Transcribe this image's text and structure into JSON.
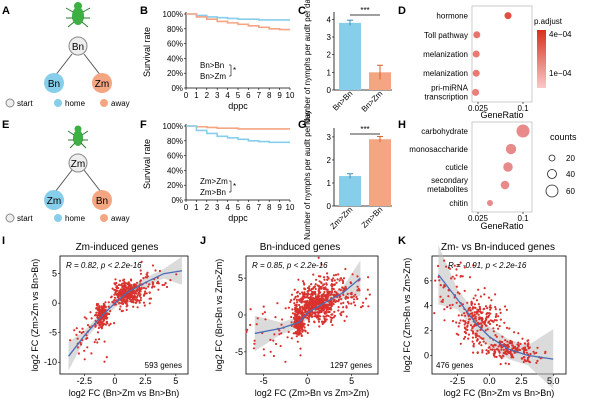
{
  "colors": {
    "bn_blue": "#87CEEB",
    "zm_orange": "#F4A582",
    "start_node": "#EEEEEE",
    "insect_green": "#3CB043",
    "dot_red": "#D9322E",
    "fit_line": "#4A6DB5",
    "ci_band": "#BDBDBD",
    "heat_high": "#D7301F",
    "heat_low": "#F4A6A6"
  },
  "panels": {
    "A": {
      "letter": "A",
      "start": "Bn",
      "left": "Bn",
      "right": "Zm",
      "legend": [
        "start",
        "home",
        "away"
      ]
    },
    "B": {
      "letter": "B",
      "ylabel": "Survival rate",
      "xlabel": "dppc",
      "yticks": [
        "100%",
        "80%",
        "60%",
        "40%",
        "20%",
        "0%"
      ],
      "xticks": [
        "0",
        "1",
        "2",
        "3",
        "4",
        "5",
        "6",
        "7",
        "8",
        "9",
        "10"
      ],
      "legend": [
        "Bn>Bn",
        "Bn>Zm"
      ],
      "sig": "*"
    },
    "C": {
      "letter": "C",
      "ylabel": "Number of nymphs per audlt per day",
      "yticks": [
        "0",
        "1",
        "2",
        "3",
        "4"
      ],
      "sig": "***"
    },
    "D": {
      "letter": "D",
      "xlabel": "GeneRatio",
      "xticks": [
        "0.025",
        "0.1"
      ],
      "legend_title": "p.adjust",
      "legend_ticks": [
        "4e−04",
        "1e−04"
      ]
    },
    "E": {
      "letter": "E",
      "start": "Zm",
      "left": "Zm",
      "right": "Bn",
      "legend": [
        "start",
        "home",
        "away"
      ]
    },
    "F": {
      "letter": "F",
      "ylabel": "Survival rate",
      "xlabel": "dppc",
      "yticks": [
        "100%",
        "80%",
        "60%",
        "40%",
        "20%",
        "0%"
      ],
      "xticks": [
        "0",
        "1",
        "2",
        "3",
        "4",
        "5",
        "6",
        "7",
        "8",
        "9",
        "10"
      ],
      "legend": [
        "Zm>Zm",
        "Zm>Bn"
      ],
      "sig": "*"
    },
    "G": {
      "letter": "G",
      "ylabel": "Number of nymphs per audlt per day",
      "yticks": [
        "0",
        "1",
        "2",
        "3"
      ],
      "sig": "***"
    },
    "H": {
      "letter": "H",
      "xlabel": "GeneRatio",
      "xticks": [
        "0.025",
        "0.1"
      ],
      "legend_title": "counts",
      "legend_ticks": [
        "20",
        "40",
        "60"
      ]
    },
    "I": {
      "letter": "I",
      "title": "Zm-induced genes",
      "stat": "R = 0.82, p < 2.2e-16",
      "count": "593 genes",
      "xlabel": "log2 FC (Bn>Zm vs Bn>Bn)",
      "ylabel": "log2 FC (Zm>Zm vs Bn>Bn)",
      "xticks": [
        "-2.5",
        "0",
        "2.5",
        "5"
      ],
      "yticks": [
        "5",
        "0",
        "-5",
        "-10"
      ]
    },
    "J": {
      "letter": "J",
      "title": "Bn-induced genes",
      "stat": "R = 0.85, p < 2.2e-16",
      "count": "1297 genes",
      "xlabel": "log2 FC (Zm>Bn vs Zm>Zm)",
      "ylabel": "log2 FC (Bn>Bn vs Zm>Zm)",
      "xticks": [
        "-5",
        "0",
        "5"
      ],
      "yticks": [
        "5",
        "0",
        "-5"
      ]
    },
    "K": {
      "letter": "K",
      "title": "Zm- vs Bn-induced genes",
      "stat": "R = -0.91, p < 2.2e-16",
      "count": "476 genes",
      "xlabel": "log2 FC (Bn>Zm vs Bn>Bn)",
      "ylabel": "log2 FC (Zm>Bn vs Zm>Zm)",
      "xticks": [
        "-2.5",
        "0.0",
        "2.5",
        "5.0"
      ],
      "yticks": [
        "6",
        "4",
        "2",
        "0"
      ]
    }
  },
  "chart_data": [
    {
      "id": "B",
      "type": "line",
      "x": [
        0,
        1,
        2,
        3,
        4,
        5,
        6,
        7,
        8,
        9,
        10
      ],
      "series": [
        {
          "name": "Bn>Bn",
          "color": "#87CEEB",
          "values": [
            100,
            98,
            96,
            95,
            94,
            93,
            93,
            92,
            92,
            92,
            92
          ]
        },
        {
          "name": "Bn>Zm",
          "color": "#F4A582",
          "values": [
            100,
            96,
            93,
            90,
            88,
            86,
            84,
            82,
            80,
            79,
            79
          ]
        }
      ],
      "ylim": [
        0,
        100
      ],
      "xlim": [
        0,
        10
      ]
    },
    {
      "id": "C",
      "type": "bar",
      "categories": [
        "Bn>Bn",
        "Bn>Zm"
      ],
      "values": [
        3.8,
        1.0
      ],
      "errors": [
        0.15,
        0.4
      ],
      "colors": [
        "#87CEEB",
        "#F4A582"
      ],
      "ylim": [
        0,
        4.3
      ]
    },
    {
      "id": "D",
      "type": "scatter",
      "categories": [
        "hormone",
        "Toll pathway",
        "melanization",
        "melanization",
        "pri-miRNA transcription"
      ],
      "values": [
        0.075,
        0.023,
        0.022,
        0.022,
        0.021
      ],
      "padj_fraction": [
        0.25,
        0.55,
        0.6,
        0.6,
        0.65
      ],
      "xlim": [
        0.015,
        0.115
      ]
    },
    {
      "id": "F",
      "type": "line",
      "x": [
        0,
        1,
        2,
        3,
        4,
        5,
        6,
        7,
        8,
        9,
        10
      ],
      "series": [
        {
          "name": "Zm>Zm",
          "color": "#F4A582",
          "values": [
            100,
            99,
            98,
            97,
            97,
            96,
            96,
            96,
            96,
            96,
            96
          ]
        },
        {
          "name": "Zm>Bn",
          "color": "#87CEEB",
          "values": [
            100,
            94,
            90,
            86,
            84,
            82,
            80,
            79,
            78,
            78,
            78
          ]
        }
      ],
      "ylim": [
        0,
        100
      ],
      "xlim": [
        0,
        10
      ]
    },
    {
      "id": "G",
      "type": "bar",
      "categories": [
        "Zm>Zm",
        "Zm>Bn"
      ],
      "values": [
        1.3,
        2.9
      ],
      "errors": [
        0.1,
        0.12
      ],
      "colors": [
        "#87CEEB",
        "#F4A582"
      ],
      "ylim": [
        0,
        3.3
      ]
    },
    {
      "id": "H",
      "type": "scatter",
      "categories": [
        "carbohydrate",
        "monosaccharide",
        "cuticle",
        "secondary metabolites",
        "chitin"
      ],
      "values": [
        0.1,
        0.08,
        0.075,
        0.07,
        0.045
      ],
      "counts": [
        60,
        45,
        40,
        35,
        20
      ],
      "xlim": [
        0.015,
        0.115
      ]
    },
    {
      "id": "I",
      "type": "scatter",
      "xlim": [
        -4.5,
        6
      ],
      "ylim": [
        -12,
        8
      ],
      "trend": [
        [
          -3.8,
          -9
        ],
        [
          -2.5,
          -5.5
        ],
        [
          -1,
          -2
        ],
        [
          0,
          0
        ],
        [
          1,
          1.8
        ],
        [
          2.5,
          3.5
        ],
        [
          4,
          5
        ],
        [
          5.5,
          5.5
        ]
      ],
      "clusters": [
        {
          "cx": 1.0,
          "cy": 1.5,
          "sx": 0.6,
          "sy": 1.0,
          "n": 320
        },
        {
          "cx": -1.0,
          "cy": -2.0,
          "sx": 0.3,
          "sy": 1.0,
          "n": 150
        },
        {
          "cx": 2.5,
          "cy": 3.5,
          "sx": 1.0,
          "sy": 1.5,
          "n": 60
        },
        {
          "cx": -2.5,
          "cy": -6.0,
          "sx": 0.9,
          "sy": 2.0,
          "n": 40
        }
      ]
    },
    {
      "id": "J",
      "type": "scatter",
      "xlim": [
        -7,
        8
      ],
      "ylim": [
        -8,
        8
      ],
      "trend": [
        [
          -6,
          -2.5
        ],
        [
          -3,
          -1.8
        ],
        [
          -1,
          -1
        ],
        [
          0,
          0.3
        ],
        [
          2,
          1.7
        ],
        [
          4,
          3
        ],
        [
          6,
          5
        ]
      ],
      "clusters": [
        {
          "cx": 1.0,
          "cy": 1.5,
          "sx": 1.2,
          "sy": 1.2,
          "n": 520
        },
        {
          "cx": -1.0,
          "cy": -1.0,
          "sx": 0.3,
          "sy": 0.8,
          "n": 250
        },
        {
          "cx": 3.5,
          "cy": 3.0,
          "sx": 1.5,
          "sy": 1.5,
          "n": 160
        },
        {
          "cx": -4.0,
          "cy": -2.5,
          "sx": 1.8,
          "sy": 2.0,
          "n": 40
        }
      ]
    },
    {
      "id": "K",
      "type": "scatter",
      "xlim": [
        -4.5,
        6
      ],
      "ylim": [
        -1.5,
        8
      ],
      "trend": [
        [
          -4,
          6.5
        ],
        [
          -2.5,
          4.5
        ],
        [
          -1,
          2.5
        ],
        [
          0,
          1.5
        ],
        [
          1.5,
          0.5
        ],
        [
          3,
          0
        ],
        [
          5,
          -0.3
        ]
      ],
      "clusters": [
        {
          "cx": -1.0,
          "cy": 2.8,
          "sx": 0.9,
          "sy": 1.0,
          "n": 220
        },
        {
          "cx": 1.5,
          "cy": 0.5,
          "sx": 0.9,
          "sy": 0.4,
          "n": 150
        },
        {
          "cx": -3.0,
          "cy": 5.5,
          "sx": 0.7,
          "sy": 1.2,
          "n": 50
        },
        {
          "cx": 3.0,
          "cy": 0.0,
          "sx": 0.8,
          "sy": 0.4,
          "n": 30
        }
      ]
    }
  ]
}
